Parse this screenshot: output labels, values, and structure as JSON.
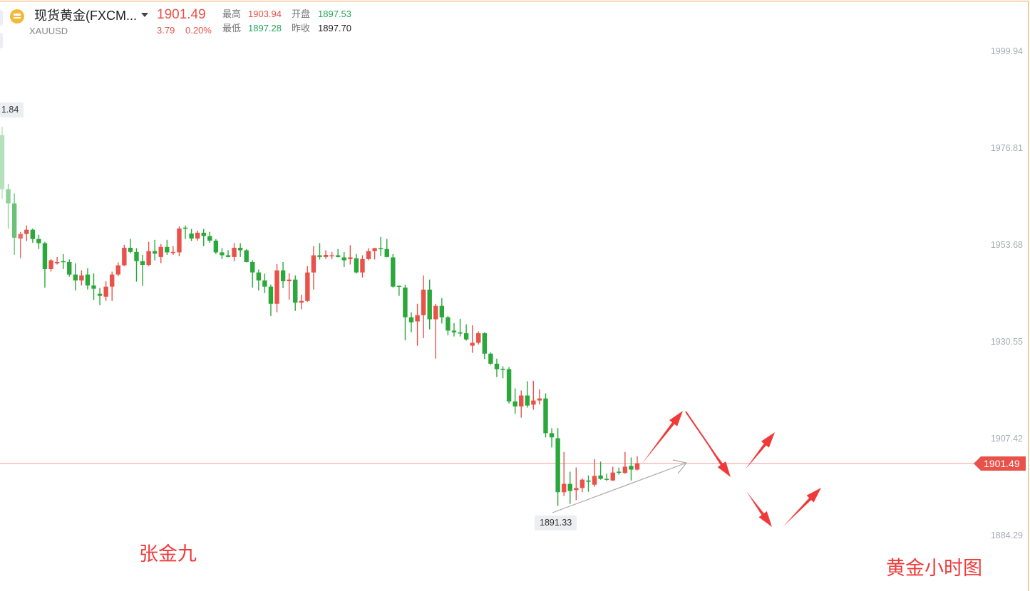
{
  "header": {
    "title": "现货黄金(FXCM...",
    "symbol": "XAUUSD",
    "price": "1901.49",
    "change": "3.79",
    "change_pct": "0.20%",
    "high_label": "最高",
    "high": "1903.94",
    "open_label": "开盘",
    "open": "1897.53",
    "low_label": "最低",
    "low": "1897.28",
    "prev_close_label": "昨收",
    "prev_close": "1897.70",
    "icon": "gold-bar-icon"
  },
  "annotations": {
    "author": "张金九",
    "caption": "黄金小时图",
    "max_tag": "1.84",
    "min_tag": "1891.33",
    "current_price_tag": "1901.49"
  },
  "colors": {
    "up": "#e8524a",
    "down": "#2aa83b",
    "arrow": "#f03a3a",
    "frame": "#f5a25d"
  },
  "chart_data": {
    "type": "candlestick",
    "title": "",
    "yaxis_ticks": [
      "1999.94",
      "1976.81",
      "1953.68",
      "1930.55",
      "1907.42",
      "1884.29"
    ],
    "ylim": [
      1871.0,
      2012.19
    ],
    "yaxis_position": "right",
    "grid": false,
    "current_price": 1901.49,
    "up_color_meaning": "red = close above open",
    "ohlc": [
      [
        1979.9,
        1981.9,
        1964.6,
        1967.0
      ],
      [
        1967.0,
        1968.3,
        1957.5,
        1963.6
      ],
      [
        1963.6,
        1966.0,
        1951.3,
        1955.4
      ],
      [
        1955.2,
        1956.8,
        1950.5,
        1956.3
      ],
      [
        1956.3,
        1958.3,
        1954.6,
        1957.3
      ],
      [
        1957.3,
        1957.6,
        1954.2,
        1955.1
      ],
      [
        1955.1,
        1956.1,
        1952.7,
        1954.1
      ],
      [
        1954.1,
        1954.4,
        1943.5,
        1947.9
      ],
      [
        1947.9,
        1950.3,
        1947.3,
        1950.0
      ],
      [
        1949.3,
        1950.8,
        1949.0,
        1949.6
      ],
      [
        1949.8,
        1951.5,
        1947.9,
        1949.6
      ],
      [
        1949.6,
        1950.2,
        1946.1,
        1946.6
      ],
      [
        1946.6,
        1949.3,
        1942.8,
        1945.2
      ],
      [
        1945.2,
        1947.6,
        1944.0,
        1946.4
      ],
      [
        1946.6,
        1948.1,
        1943.0,
        1944.0
      ],
      [
        1944.0,
        1946.9,
        1940.5,
        1943.2
      ],
      [
        1942.0,
        1943.4,
        1939.3,
        1941.5
      ],
      [
        1941.3,
        1945.0,
        1940.3,
        1943.7
      ],
      [
        1943.7,
        1947.3,
        1940.3,
        1946.6
      ],
      [
        1946.6,
        1949.5,
        1946.2,
        1948.8
      ],
      [
        1948.8,
        1953.7,
        1948.6,
        1953.0
      ],
      [
        1953.0,
        1955.1,
        1951.7,
        1952.0
      ],
      [
        1952.0,
        1952.9,
        1944.9,
        1949.8
      ],
      [
        1949.8,
        1951.3,
        1943.9,
        1948.9
      ],
      [
        1948.9,
        1954.4,
        1948.6,
        1952.2
      ],
      [
        1952.2,
        1954.9,
        1950.0,
        1951.6
      ],
      [
        1950.8,
        1953.9,
        1949.3,
        1953.2
      ],
      [
        1953.2,
        1954.9,
        1951.3,
        1951.9
      ],
      [
        1951.9,
        1953.4,
        1951.3,
        1952.0
      ],
      [
        1951.9,
        1958.1,
        1951.0,
        1957.6
      ],
      [
        1957.8,
        1958.3,
        1955.1,
        1957.6
      ],
      [
        1956.4,
        1957.5,
        1954.6,
        1955.2
      ],
      [
        1955.2,
        1957.1,
        1954.7,
        1956.6
      ],
      [
        1956.6,
        1957.5,
        1953.4,
        1955.8
      ],
      [
        1955.8,
        1956.8,
        1954.2,
        1954.7
      ],
      [
        1954.7,
        1955.1,
        1951.5,
        1951.9
      ],
      [
        1951.9,
        1952.9,
        1950.3,
        1951.2
      ],
      [
        1951.2,
        1952.4,
        1950.7,
        1950.8
      ],
      [
        1950.8,
        1954.1,
        1949.8,
        1953.0
      ],
      [
        1953.0,
        1954.1,
        1950.8,
        1952.4
      ],
      [
        1952.4,
        1952.7,
        1949.5,
        1949.6
      ],
      [
        1949.6,
        1950.0,
        1943.5,
        1947.1
      ],
      [
        1947.1,
        1947.8,
        1942.8,
        1945.2
      ],
      [
        1945.2,
        1946.8,
        1942.2,
        1943.7
      ],
      [
        1943.7,
        1944.2,
        1936.7,
        1939.6
      ],
      [
        1939.6,
        1949.1,
        1937.6,
        1947.6
      ],
      [
        1947.6,
        1949.6,
        1943.4,
        1945.0
      ],
      [
        1945.0,
        1946.9,
        1940.6,
        1945.4
      ],
      [
        1945.4,
        1946.4,
        1937.9,
        1939.9
      ],
      [
        1939.9,
        1941.8,
        1938.3,
        1940.3
      ],
      [
        1940.3,
        1948.6,
        1940.1,
        1947.1
      ],
      [
        1947.1,
        1953.4,
        1943.0,
        1951.2
      ],
      [
        1951.2,
        1954.1,
        1950.2,
        1950.8
      ],
      [
        1950.8,
        1952.4,
        1950.3,
        1951.3
      ],
      [
        1951.0,
        1952.0,
        1950.3,
        1951.2
      ],
      [
        1951.2,
        1952.7,
        1950.7,
        1950.8
      ],
      [
        1950.7,
        1952.0,
        1948.4,
        1950.0
      ],
      [
        1950.3,
        1953.6,
        1949.0,
        1950.7
      ],
      [
        1950.5,
        1951.5,
        1946.8,
        1947.1
      ],
      [
        1947.1,
        1951.2,
        1945.9,
        1950.3
      ],
      [
        1950.3,
        1952.9,
        1950.0,
        1952.2
      ],
      [
        1952.2,
        1953.0,
        1950.2,
        1952.9
      ],
      [
        1952.9,
        1955.6,
        1951.0,
        1952.7
      ],
      [
        1952.7,
        1955.1,
        1950.7,
        1950.8
      ],
      [
        1950.7,
        1951.5,
        1943.5,
        1943.7
      ],
      [
        1943.9,
        1944.0,
        1941.5,
        1943.7
      ],
      [
        1943.5,
        1944.2,
        1930.9,
        1936.4
      ],
      [
        1936.4,
        1937.6,
        1932.8,
        1935.2
      ],
      [
        1935.4,
        1939.6,
        1929.6,
        1936.9
      ],
      [
        1936.9,
        1946.4,
        1931.4,
        1943.0
      ],
      [
        1943.0,
        1945.4,
        1933.5,
        1935.9
      ],
      [
        1935.9,
        1939.6,
        1926.5,
        1939.1
      ],
      [
        1939.1,
        1941.0,
        1934.9,
        1936.4
      ],
      [
        1936.4,
        1936.7,
        1932.1,
        1933.2
      ],
      [
        1933.2,
        1935.0,
        1931.8,
        1932.8
      ],
      [
        1932.8,
        1936.0,
        1931.8,
        1932.5
      ],
      [
        1932.6,
        1934.7,
        1930.8,
        1931.1
      ],
      [
        1929.6,
        1934.5,
        1927.9,
        1930.3
      ],
      [
        1930.3,
        1933.0,
        1929.9,
        1932.6
      ],
      [
        1932.6,
        1932.8,
        1926.4,
        1927.7
      ],
      [
        1927.7,
        1928.0,
        1925.0,
        1925.3
      ],
      [
        1925.3,
        1926.5,
        1922.1,
        1924.0
      ],
      [
        1924.1,
        1924.7,
        1921.8,
        1924.0
      ],
      [
        1924.0,
        1924.5,
        1915.8,
        1916.3
      ],
      [
        1916.3,
        1919.4,
        1913.3,
        1915.1
      ],
      [
        1915.1,
        1918.9,
        1912.4,
        1917.7
      ],
      [
        1917.7,
        1921.1,
        1914.8,
        1915.3
      ],
      [
        1915.5,
        1921.2,
        1914.3,
        1916.5
      ],
      [
        1916.5,
        1919.2,
        1915.6,
        1917.0
      ],
      [
        1917.0,
        1918.2,
        1907.7,
        1908.7
      ],
      [
        1908.7,
        1909.9,
        1905.3,
        1907.7
      ],
      [
        1907.5,
        1909.9,
        1891.33,
        1894.6
      ],
      [
        1894.6,
        1904.2,
        1893.7,
        1896.6
      ],
      [
        1896.6,
        1899.5,
        1891.8,
        1894.9
      ],
      [
        1895.1,
        1900.5,
        1892.7,
        1895.6
      ],
      [
        1895.6,
        1897.9,
        1894.6,
        1897.6
      ],
      [
        1897.4,
        1898.6,
        1894.7,
        1897.1
      ],
      [
        1896.4,
        1902.5,
        1895.9,
        1898.5
      ],
      [
        1898.6,
        1901.9,
        1897.6,
        1897.8
      ],
      [
        1897.8,
        1899.0,
        1897.3,
        1897.6
      ],
      [
        1897.4,
        1900.7,
        1897.3,
        1899.3
      ],
      [
        1899.5,
        1900.5,
        1898.8,
        1899.3
      ],
      [
        1899.2,
        1904.2,
        1899.0,
        1900.7
      ],
      [
        1900.9,
        1902.9,
        1897.4,
        1900.0
      ],
      [
        1900.0,
        1903.2,
        1899.8,
        1901.49
      ]
    ]
  }
}
